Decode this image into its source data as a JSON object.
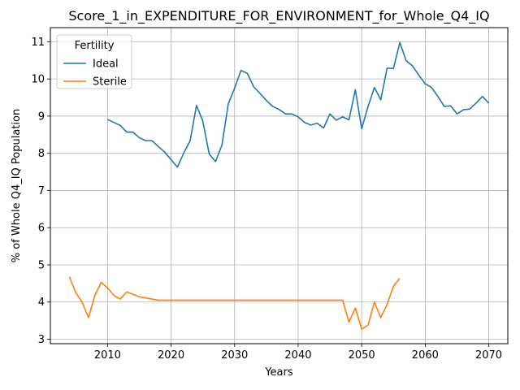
{
  "chart_data": {
    "type": "line",
    "title": "Score_1_in_EXPENDITURE_FOR_ENVIRONMENT_for_Whole_Q4_IQ",
    "xlabel": "Years",
    "ylabel": "% of Whole Q4_IQ Population",
    "xlim": [
      2001,
      2073
    ],
    "ylim": [
      2.88,
      11.38
    ],
    "xticks": [
      2010,
      2020,
      2030,
      2040,
      2050,
      2060,
      2070
    ],
    "yticks": [
      3,
      4,
      5,
      6,
      7,
      8,
      9,
      10,
      11
    ],
    "grid": true,
    "legend": {
      "title": "Fertility",
      "placement": "upper-left"
    },
    "series": [
      {
        "name": "Ideal",
        "color": "#1f77b4",
        "points": [
          [
            2010,
            8.91
          ],
          [
            2011,
            8.83
          ],
          [
            2012,
            8.75
          ],
          [
            2013,
            8.57
          ],
          [
            2014,
            8.57
          ],
          [
            2015,
            8.42
          ],
          [
            2016,
            8.34
          ],
          [
            2017,
            8.34
          ],
          [
            2018,
            8.18
          ],
          [
            2019,
            8.03
          ],
          [
            2020,
            7.83
          ],
          [
            2021,
            7.63
          ],
          [
            2022,
            8.01
          ],
          [
            2023,
            8.34
          ],
          [
            2024,
            9.29
          ],
          [
            2025,
            8.86
          ],
          [
            2026,
            7.98
          ],
          [
            2027,
            7.78
          ],
          [
            2028,
            8.22
          ],
          [
            2029,
            9.33
          ],
          [
            2030,
            9.75
          ],
          [
            2031,
            10.23
          ],
          [
            2032,
            10.15
          ],
          [
            2033,
            9.79
          ],
          [
            2034,
            9.61
          ],
          [
            2035,
            9.42
          ],
          [
            2036,
            9.26
          ],
          [
            2037,
            9.18
          ],
          [
            2038,
            9.06
          ],
          [
            2039,
            9.06
          ],
          [
            2040,
            8.98
          ],
          [
            2041,
            8.83
          ],
          [
            2042,
            8.76
          ],
          [
            2043,
            8.81
          ],
          [
            2044,
            8.68
          ],
          [
            2045,
            9.06
          ],
          [
            2046,
            8.89
          ],
          [
            2047,
            8.98
          ],
          [
            2048,
            8.9
          ],
          [
            2049,
            9.71
          ],
          [
            2050,
            8.66
          ],
          [
            2051,
            9.26
          ],
          [
            2052,
            9.77
          ],
          [
            2053,
            9.44
          ],
          [
            2054,
            10.29
          ],
          [
            2055,
            10.28
          ],
          [
            2056,
            10.98
          ],
          [
            2057,
            10.49
          ],
          [
            2058,
            10.35
          ],
          [
            2059,
            10.1
          ],
          [
            2060,
            9.87
          ],
          [
            2061,
            9.77
          ],
          [
            2062,
            9.53
          ],
          [
            2063,
            9.26
          ],
          [
            2064,
            9.28
          ],
          [
            2065,
            9.06
          ],
          [
            2066,
            9.17
          ],
          [
            2067,
            9.19
          ],
          [
            2068,
            9.35
          ],
          [
            2069,
            9.53
          ],
          [
            2070,
            9.35
          ]
        ]
      },
      {
        "name": "Sterile",
        "color": "#ff7f0e",
        "points": [
          [
            2004,
            4.68
          ],
          [
            2005,
            4.25
          ],
          [
            2006,
            4.0
          ],
          [
            2007,
            3.58
          ],
          [
            2008,
            4.18
          ],
          [
            2009,
            4.53
          ],
          [
            2010,
            4.38
          ],
          [
            2011,
            4.18
          ],
          [
            2012,
            4.08
          ],
          [
            2013,
            4.27
          ],
          [
            2014,
            4.21
          ],
          [
            2015,
            4.14
          ],
          [
            2016,
            4.11
          ],
          [
            2017,
            4.08
          ],
          [
            2018,
            4.05
          ],
          [
            2019,
            4.05
          ],
          [
            2020,
            4.05
          ],
          [
            2021,
            4.05
          ],
          [
            2022,
            4.05
          ],
          [
            2023,
            4.05
          ],
          [
            2024,
            4.05
          ],
          [
            2025,
            4.05
          ],
          [
            2026,
            4.05
          ],
          [
            2027,
            4.05
          ],
          [
            2028,
            4.05
          ],
          [
            2029,
            4.05
          ],
          [
            2030,
            4.05
          ],
          [
            2031,
            4.05
          ],
          [
            2032,
            4.05
          ],
          [
            2033,
            4.05
          ],
          [
            2034,
            4.05
          ],
          [
            2035,
            4.05
          ],
          [
            2036,
            4.05
          ],
          [
            2037,
            4.05
          ],
          [
            2038,
            4.05
          ],
          [
            2039,
            4.05
          ],
          [
            2040,
            4.05
          ],
          [
            2041,
            4.05
          ],
          [
            2042,
            4.05
          ],
          [
            2043,
            4.05
          ],
          [
            2044,
            4.05
          ],
          [
            2045,
            4.05
          ],
          [
            2046,
            4.05
          ],
          [
            2047,
            4.05
          ],
          [
            2048,
            3.46
          ],
          [
            2049,
            3.84
          ],
          [
            2050,
            3.27
          ],
          [
            2051,
            3.38
          ],
          [
            2052,
            4.0
          ],
          [
            2053,
            3.58
          ],
          [
            2054,
            3.94
          ],
          [
            2055,
            4.42
          ],
          [
            2056,
            4.64
          ]
        ]
      }
    ]
  }
}
